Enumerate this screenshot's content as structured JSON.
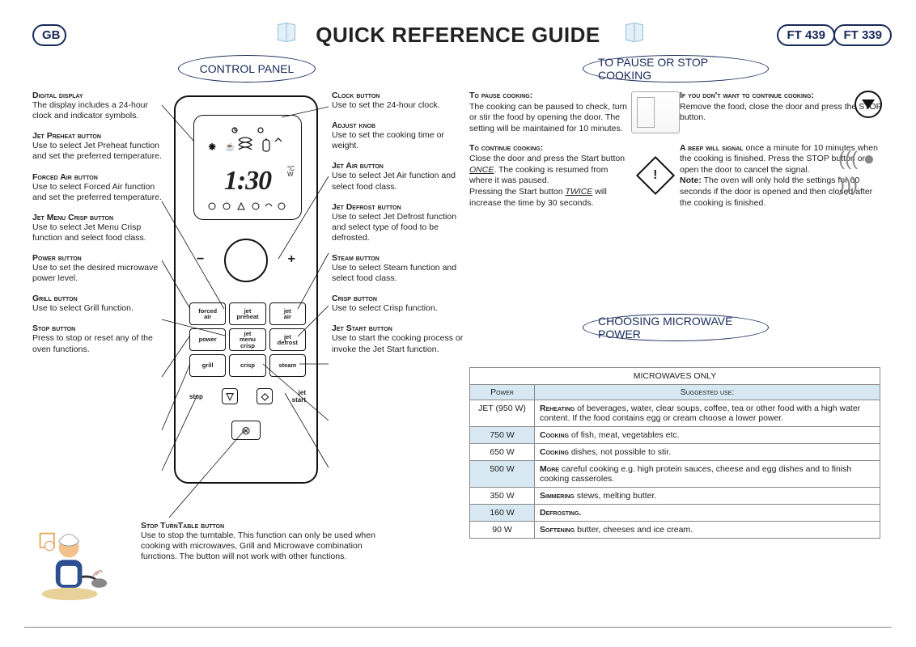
{
  "page": {
    "title": "QUICK REFERENCE GUIDE",
    "badges": {
      "gb": "GB",
      "ft439": "FT 439",
      "ft339": "FT 339"
    }
  },
  "sections": {
    "control_panel": "CONTROL PANEL",
    "pause_stop": "TO PAUSE OR STOP COOKING",
    "choose_power": "CHOOSING MICROWAVE POWER"
  },
  "panel": {
    "display_time": "1:30",
    "display_units": "°C\nW",
    "buttons": [
      "forced air",
      "jet preheat",
      "jet air",
      "power",
      "jet menu crisp",
      "jet defrost",
      "grill",
      "crisp",
      "steam"
    ],
    "row2": {
      "stop": "stop",
      "jetstart": "jet start"
    }
  },
  "left_callouts": [
    {
      "h": "Digital display",
      "b": "The display includes a 24-hour clock and indicator symbols."
    },
    {
      "h": "Jet Preheat button",
      "b": "Use to select Jet Preheat function and set the preferred temperature."
    },
    {
      "h": "Forced Air button",
      "b": "Use to select Forced Air function and set the preferred temperature."
    },
    {
      "h": "Jet Menu Crisp button",
      "b": "Use to select Jet Menu Crisp function and select food class."
    },
    {
      "h": "Power button",
      "b": "Use to set the desired microwave power level."
    },
    {
      "h": "Grill button",
      "b": "Use to select Grill function."
    },
    {
      "h": "Stop button",
      "b": "Press to stop or reset any of the oven functions."
    }
  ],
  "right_callouts": [
    {
      "h": "Clock button",
      "b": "Use to set the 24-hour clock."
    },
    {
      "h": "Adjust knob",
      "b": "Use to set the cooking time or weight."
    },
    {
      "h": "Jet Air button",
      "b": "Use to select Jet Air function and select food class."
    },
    {
      "h": "Jet Defrost button",
      "b": "Use to select Jet Defrost function and select type of food to be defrosted."
    },
    {
      "h": "Steam button",
      "b": "Use to select Steam function and select food class."
    },
    {
      "h": "Crisp button",
      "b": "Use to select Crisp function."
    },
    {
      "h": "Jet Start button",
      "b": "Use to start the cooking process or invoke the Jet Start function."
    }
  ],
  "tt_callout": {
    "h": "Stop TurnTable button",
    "b": "Use to stop the turntable. This function can only be used when cooking with microwaves, Grill and Microwave combination functions. The button will not work with other functions."
  },
  "pause": {
    "to_pause_h": "To pause cooking:",
    "to_pause_b": "The cooking can be paused to check, turn or stir the food by opening the door. The setting will be maintained for 10 minutes.",
    "to_continue_h": "To continue cooking:",
    "to_continue_b1": "Close the door and press the Start button ",
    "to_continue_once": "ONCE",
    "to_continue_b2": ". The cooking is resumed from where it was paused.",
    "to_continue_b3": "Pressing the Start button ",
    "to_continue_twice": "TWICE",
    "to_continue_b4": " will increase the time by 30 seconds.",
    "dont_h": "If you don't want to continue cooking:",
    "dont_b": "Remove the food, close the door and press the STOP button.",
    "beep_h": "A beep will signal",
    "beep_b1": " once a minute for 10 minutes when the cooking is finished. Press the STOP button or open the door to cancel the signal.",
    "note_h": "Note:",
    "note_b": " The oven will only hold the settings for 60 seconds if the door is opened and then closed after the cooking is finished."
  },
  "power_table": {
    "title": "MICROWAVES ONLY",
    "col_power": "Power",
    "col_use": "Suggested use:",
    "rows": [
      {
        "p": "JET (950 W)",
        "r_b": "Reheating",
        "r": " of beverages, water, clear soups, coffee, tea or other food with a high water content. If the food contains egg or cream choose a lower power."
      },
      {
        "p": "750 W",
        "r_b": "Cooking",
        "r": " of fish, meat, vegetables etc.",
        "sh": true
      },
      {
        "p": "650 W",
        "r_b": "Cooking",
        "r": " dishes, not possible to stir."
      },
      {
        "p": "500 W",
        "r_b": "More",
        "r": " careful cooking e.g. high protein sauces, cheese and egg dishes and to finish cooking casseroles.",
        "sh": true
      },
      {
        "p": "350 W",
        "r_b": "Simmering",
        "r": " stews, melting butter."
      },
      {
        "p": "160 W",
        "r_b": "Defrosting.",
        "r": "",
        "sh": true
      },
      {
        "p": "90 W",
        "r_b": "Softening",
        "r": " butter, cheeses and ice cream."
      }
    ]
  },
  "colors": {
    "navy": "#1a2a5a",
    "table_shade": "#d7e8f2"
  }
}
